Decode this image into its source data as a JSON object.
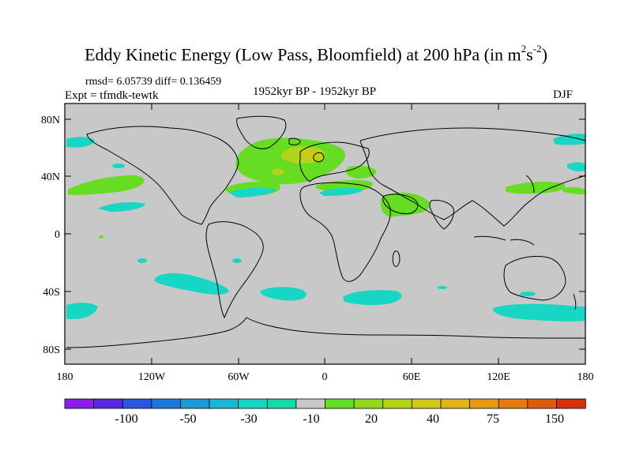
{
  "title": {
    "main": "Eddy Kinetic Energy (Low Pass, Bloomfield) at 200 hPa (in m",
    "sup1": "2",
    "mid": "s",
    "sup2": "-2",
    "end": ")"
  },
  "stats_line": "rmsd= 6.05739 diff= 0.136459",
  "experiment": "Expt = tfmdk-tewtk",
  "period": "1952kyr BP - 1952kyr BP",
  "season": "DJF",
  "axes": {
    "lat_labels": [
      "80N",
      "40N",
      "0",
      "40S",
      "80S"
    ],
    "lon_labels": [
      "180",
      "120W",
      "60W",
      "0",
      "60E",
      "120E",
      "180"
    ]
  },
  "colorbar": {
    "labels": [
      "-100",
      "-50",
      "-30",
      "-10",
      "20",
      "40",
      "75",
      "150"
    ],
    "colors": [
      "#8a1ee6",
      "#5a28e0",
      "#2a55e0",
      "#1a78dc",
      "#1a9ad6",
      "#19b9d4",
      "#17d6c4",
      "#16d9a8",
      "#c8c8c8",
      "#66dd22",
      "#90d81a",
      "#b4d41a",
      "#d2c81a",
      "#e0b418",
      "#e89a14",
      "#e67a10",
      "#e05a0c",
      "#d8300a"
    ]
  },
  "colors": {
    "ocean_background": "#c8c8c8",
    "positive_low": "#66dd22",
    "positive_mid": "#b4d41a",
    "negative_low": "#17d6c4"
  }
}
